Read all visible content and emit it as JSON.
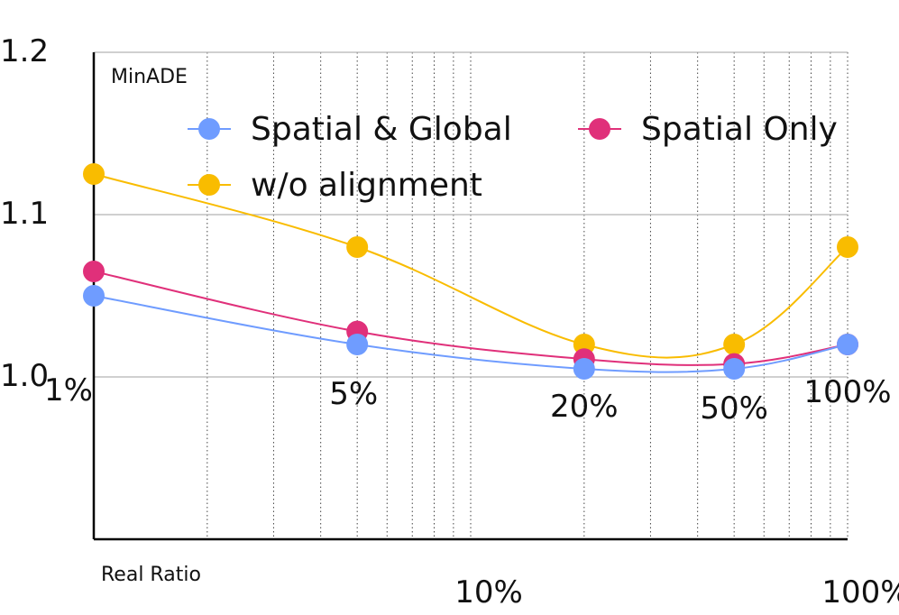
{
  "chart_data": {
    "type": "line",
    "ylabel": "MinADE",
    "xlabel": "Real Ratio",
    "x_scale": "log",
    "xlim": [
      1,
      100
    ],
    "ylim": [
      0.9,
      1.2
    ],
    "y_ticks": [
      "1.0",
      "1.1",
      "1.2"
    ],
    "x_tick_labels": [
      "10%",
      "100%"
    ],
    "grid": "vertical dotted log minor gridlines, horizontal gridlines at 1.0, 1.1, 1.2",
    "legend_position": "top",
    "categories": [
      "1%",
      "5%",
      "20%",
      "50%",
      "100%"
    ],
    "x": [
      1,
      5,
      20,
      50,
      100
    ],
    "series": [
      {
        "name": "Spatial & Global",
        "color": "#6f9cff",
        "values": [
          1.05,
          1.02,
          1.005,
          1.005,
          1.02
        ]
      },
      {
        "name": "Spatial Only",
        "color": "#e0307a",
        "values": [
          1.065,
          1.028,
          1.011,
          1.008,
          1.02
        ]
      },
      {
        "name": "w/o alignment",
        "color": "#f9bc00",
        "values": [
          1.125,
          1.08,
          1.02,
          1.02,
          1.08
        ]
      }
    ]
  }
}
